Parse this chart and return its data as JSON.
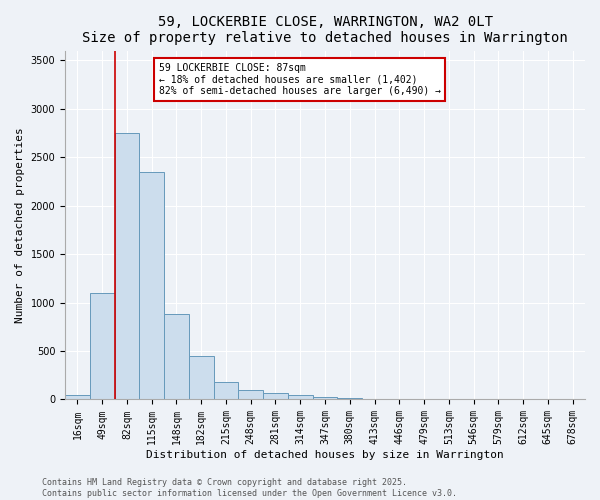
{
  "title": "59, LOCKERBIE CLOSE, WARRINGTON, WA2 0LT",
  "subtitle": "Size of property relative to detached houses in Warrington",
  "xlabel": "Distribution of detached houses by size in Warrington",
  "ylabel": "Number of detached properties",
  "bin_labels": [
    "16sqm",
    "49sqm",
    "82sqm",
    "115sqm",
    "148sqm",
    "182sqm",
    "215sqm",
    "248sqm",
    "281sqm",
    "314sqm",
    "347sqm",
    "380sqm",
    "413sqm",
    "446sqm",
    "479sqm",
    "513sqm",
    "546sqm",
    "579sqm",
    "612sqm",
    "645sqm",
    "678sqm"
  ],
  "bin_values": [
    50,
    1100,
    2750,
    2350,
    880,
    450,
    180,
    100,
    70,
    50,
    30,
    20,
    10,
    5,
    3,
    2,
    1,
    1,
    0,
    0,
    0
  ],
  "bar_color": "#ccdded",
  "bar_edge_color": "#6699bb",
  "red_line_bin": 2,
  "annotation_title": "59 LOCKERBIE CLOSE: 87sqm",
  "annotation_line1": "← 18% of detached houses are smaller (1,402)",
  "annotation_line2": "82% of semi-detached houses are larger (6,490) →",
  "annotation_box_facecolor": "#ffffff",
  "annotation_box_edgecolor": "#cc0000",
  "ylim": [
    0,
    3600
  ],
  "yticks": [
    0,
    500,
    1000,
    1500,
    2000,
    2500,
    3000,
    3500
  ],
  "footer_line1": "Contains HM Land Registry data © Crown copyright and database right 2025.",
  "footer_line2": "Contains public sector information licensed under the Open Government Licence v3.0.",
  "bg_color": "#eef2f7",
  "grid_color": "#ffffff",
  "title_fontsize": 10,
  "axis_label_fontsize": 8,
  "tick_fontsize": 7,
  "footer_fontsize": 6
}
